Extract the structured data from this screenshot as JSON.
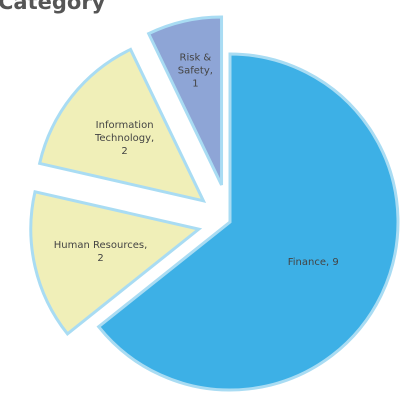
{
  "chart_data": {
    "type": "pie",
    "title": "Category",
    "values": [
      9,
      2,
      2,
      1
    ],
    "value_labels": [
      "Finance, 9",
      "Human Resources, 2",
      "Information Technology, 2",
      "Risk & Safety, 1"
    ],
    "colors": [
      "#3db0e6",
      "#f0efb8",
      "#f0efb8",
      "#8ea5d6"
    ]
  }
}
